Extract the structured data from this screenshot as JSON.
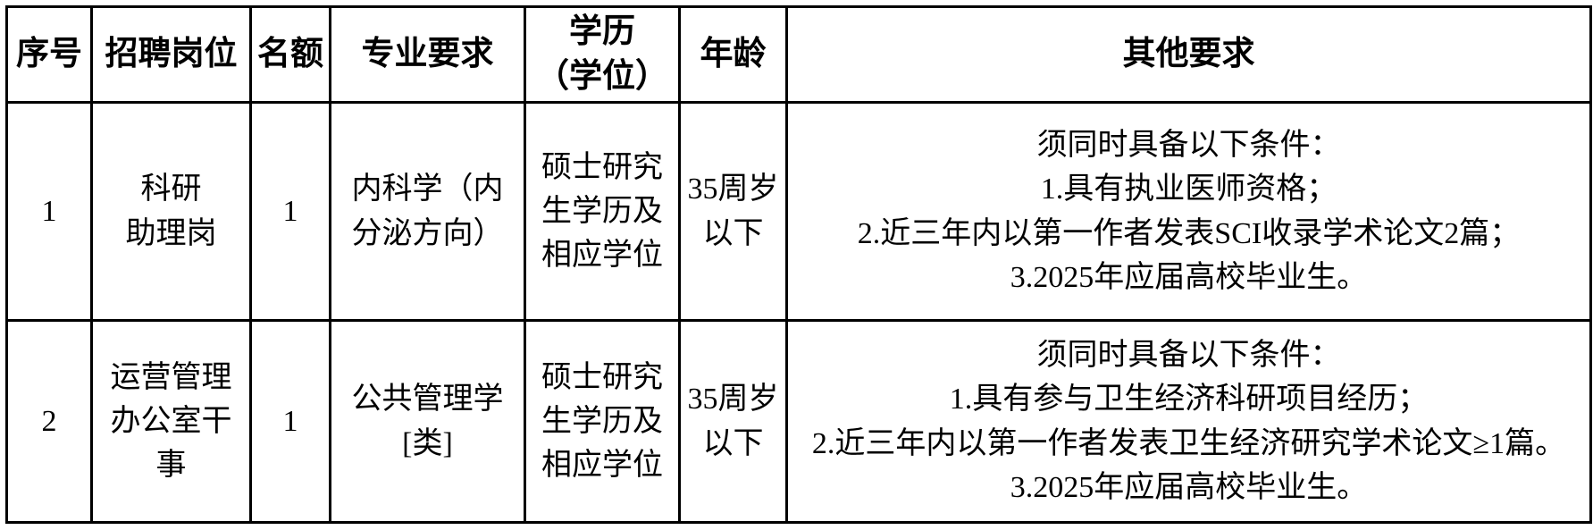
{
  "colors": {
    "border": "#000000",
    "text": "#000000",
    "background": "#ffffff"
  },
  "table": {
    "columns": [
      {
        "key": "no",
        "label": "序号"
      },
      {
        "key": "pos",
        "label": "招聘岗位"
      },
      {
        "key": "quota",
        "label": "名额"
      },
      {
        "key": "major",
        "label": "专业要求"
      },
      {
        "key": "degree",
        "label": "学历\n（学位）"
      },
      {
        "key": "age",
        "label": "年龄"
      },
      {
        "key": "other",
        "label": "其他要求"
      }
    ],
    "rows": [
      {
        "no": "1",
        "position": "科研\n助理岗",
        "quota": "1",
        "major": "内科学（内\n分泌方向）",
        "degree": "硕士研究\n生学历及\n相应学位",
        "age": "35周岁\n以下",
        "other": "须同时具备以下条件：\n1.具有执业医师资格；\n2.近三年内以第一作者发表SCI收录学术论文2篇；\n3.2025年应届高校毕业生。"
      },
      {
        "no": "2",
        "position": "运营管理\n办公室干\n事",
        "quota": "1",
        "major": "公共管理学\n[类]",
        "degree": "硕士研究\n生学历及\n相应学位",
        "age": "35周岁\n以下",
        "other": "须同时具备以下条件：\n1.具有参与卫生经济科研项目经历；\n2.近三年内以第一作者发表卫生经济研究学术论文≥1篇。\n3.2025年应届高校毕业生。"
      }
    ]
  }
}
